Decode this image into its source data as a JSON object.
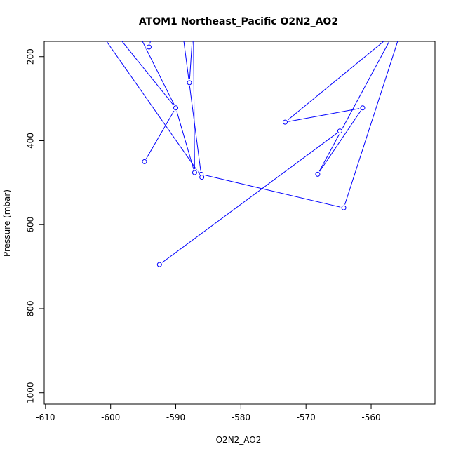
{
  "chart_data": {
    "type": "line",
    "title": "ATOM1 Northeast_Pacific O2N2_AO2",
    "xlabel": "O2N2_AO2",
    "ylabel": "Pressure (mbar)",
    "xlim": [
      -610,
      -550
    ],
    "ylim": [
      1000,
      150
    ],
    "y_reversed": true,
    "x_ticks": [
      -610,
      -600,
      -590,
      -580,
      -570,
      -560
    ],
    "y_ticks": [
      200,
      400,
      600,
      800,
      1000
    ],
    "line_color": "#0000ff",
    "marker": "open-circle",
    "series": [
      {
        "points": [
          [
            -589.0,
            135
          ],
          [
            -586.1,
            480
          ],
          [
            -564.2,
            560
          ],
          [
            -554.5,
            95
          ]
        ]
      },
      {
        "points": [
          [
            -555.0,
            100
          ],
          [
            -568.2,
            480
          ],
          [
            -561.3,
            322
          ]
        ]
      },
      {
        "points": [
          [
            -561.3,
            322
          ],
          [
            -573.2,
            356
          ],
          [
            -557.0,
            150
          ]
        ]
      },
      {
        "points": [
          [
            -592.5,
            695
          ],
          [
            -564.8,
            377
          ]
        ]
      },
      {
        "points": [
          [
            -594.8,
            450
          ],
          [
            -590.0,
            322
          ],
          [
            -600.0,
            130
          ]
        ]
      },
      {
        "points": [
          [
            -603.5,
            100
          ],
          [
            -586.0,
            487
          ]
        ]
      },
      {
        "points": [
          [
            -597.0,
            105
          ],
          [
            -590.0,
            322
          ],
          [
            -587.1,
            476
          ]
        ]
      },
      {
        "points": [
          [
            -587.1,
            476
          ],
          [
            -587.3,
            120
          ]
        ]
      },
      {
        "points": [
          [
            -587.9,
            262
          ],
          [
            -587.3,
            120
          ]
        ]
      },
      {
        "points": [
          [
            -594.1,
            177
          ],
          [
            -593.6,
            145
          ]
        ]
      }
    ]
  }
}
